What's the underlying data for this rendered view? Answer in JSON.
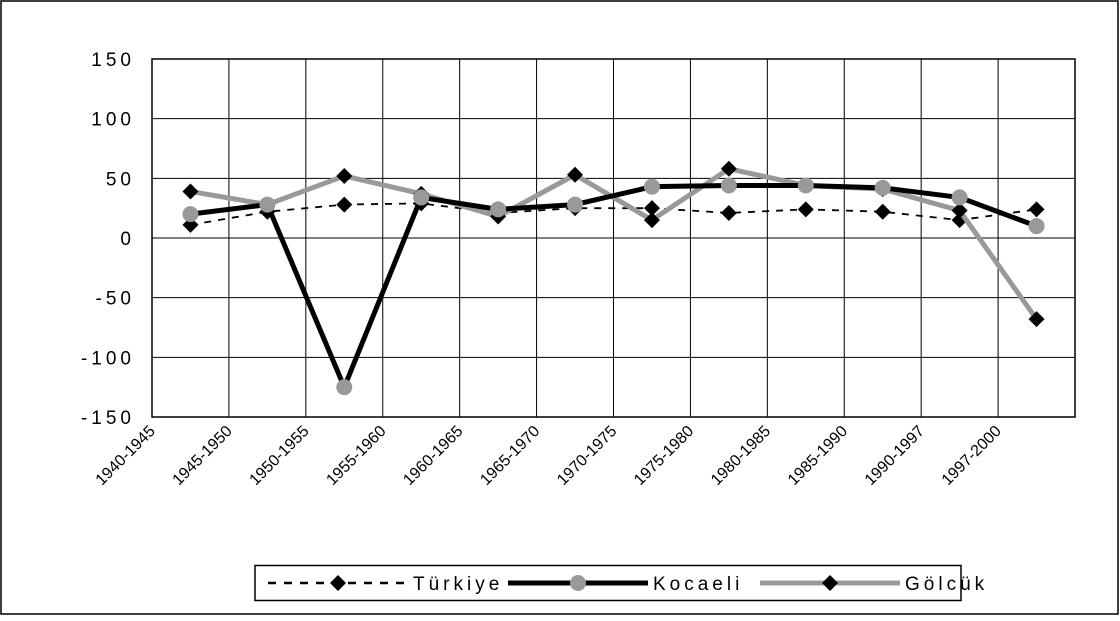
{
  "chart_data": {
    "type": "line",
    "categories": [
      "1940-1945",
      "1945-1950",
      "1950-1955",
      "1955-1960",
      "1960-1965",
      "1965-1970",
      "1970-1975",
      "1975-1980",
      "1980-1985",
      "1985-1990",
      "1990-1997",
      "1997-2000"
    ],
    "series": [
      {
        "name": "Türkiye",
        "color": "#000000",
        "line_style": "dashed",
        "marker": "diamond",
        "marker_color": "#000000",
        "values": [
          11,
          22,
          28,
          29,
          21,
          25,
          25,
          21,
          24,
          22,
          15,
          24
        ]
      },
      {
        "name": "Kocaeli",
        "color": "#000000",
        "line_style": "solid-thick",
        "marker": "circle",
        "marker_color": "#999999",
        "values": [
          20,
          28,
          -125,
          34,
          24,
          28,
          43,
          44,
          44,
          42,
          34,
          10
        ]
      },
      {
        "name": "Gölcük",
        "color": "#999999",
        "line_style": "solid-thick",
        "marker": "diamond",
        "marker_color": "#000000",
        "values": [
          39,
          28,
          52,
          37,
          18,
          53,
          15,
          58,
          44,
          41,
          23,
          -68
        ]
      }
    ],
    "y_ticks": [
      "150",
      "100",
      "50",
      "0",
      "-50",
      "-100",
      "-150"
    ],
    "ylim": [
      -150,
      150
    ],
    "grid": true,
    "legend_position": "bottom",
    "title": "",
    "xlabel": "",
    "ylabel": ""
  }
}
